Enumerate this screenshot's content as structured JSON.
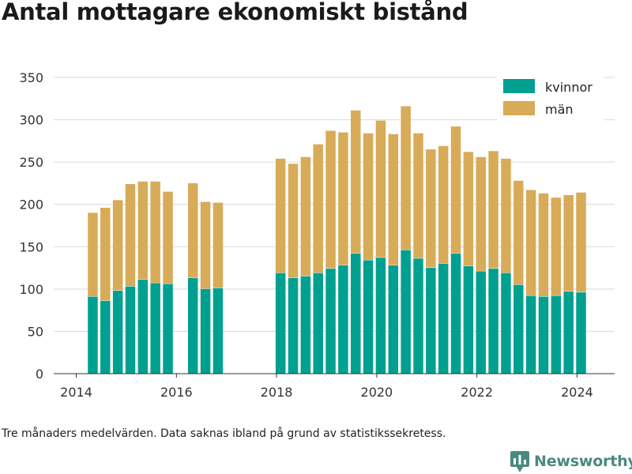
{
  "title": "Antal mottagare ekonomiskt bistånd",
  "caption": "Tre månaders medelvärden. Data saknas ibland på grund av statistikssekretess.",
  "brand": "Newsworthy",
  "colors": {
    "kvinnor": "#00a090",
    "man": "#d8ab58",
    "grid": "#d9d9d9",
    "brand": "#4a8a7f"
  },
  "chart_data": {
    "type": "bar",
    "stacked": true,
    "ylim": [
      0,
      350
    ],
    "yticks": [
      0,
      50,
      100,
      150,
      200,
      250,
      300,
      350
    ],
    "xlim": [
      2013.55,
      2024.75
    ],
    "xticks": [
      "2014",
      "2016",
      "2018",
      "2020",
      "2022",
      "2024"
    ],
    "grid": true,
    "legend_position": "top-right",
    "x": [
      2014.33,
      2014.58,
      2014.83,
      2015.08,
      2015.33,
      2015.58,
      2015.83,
      2016.33,
      2016.58,
      2016.83,
      2018.08,
      2018.33,
      2018.58,
      2018.83,
      2019.08,
      2019.33,
      2019.58,
      2019.83,
      2020.08,
      2020.33,
      2020.58,
      2020.83,
      2021.08,
      2021.33,
      2021.58,
      2021.83,
      2022.08,
      2022.33,
      2022.58,
      2022.83,
      2023.08,
      2023.33,
      2023.58,
      2023.83,
      2024.08
    ],
    "series": [
      {
        "name": "kvinnor",
        "values": [
          91,
          86,
          98,
          103,
          111,
          107,
          106,
          113,
          100,
          101,
          119,
          113,
          115,
          119,
          124,
          128,
          142,
          134,
          137,
          128,
          146,
          136,
          125,
          130,
          142,
          127,
          121,
          124,
          119,
          105,
          92,
          91,
          92,
          97,
          96
        ]
      },
      {
        "name": "män",
        "values": [
          99,
          110,
          107,
          121,
          116,
          120,
          109,
          112,
          103,
          101,
          135,
          135,
          141,
          152,
          163,
          157,
          169,
          150,
          162,
          155,
          170,
          148,
          140,
          139,
          150,
          135,
          135,
          139,
          135,
          123,
          125,
          122,
          116,
          114,
          118
        ]
      }
    ]
  }
}
